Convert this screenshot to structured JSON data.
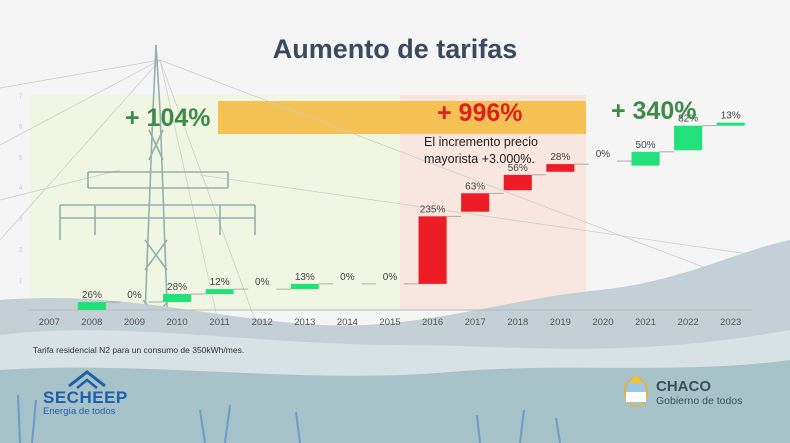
{
  "title": "Aumento de tarifas",
  "periods": {
    "p1": "+ 104%",
    "p2": "+ 996%",
    "p3": "+ 340%"
  },
  "note": "El incremento precio mayorista +3.000%.",
  "footnote": "Tarifa residencial N2 para un consumo de 350kWh/mes.",
  "logos": {
    "left_brand": "SECHEEP",
    "left_tagline": "Energía de todos",
    "right_brand": "CHACO",
    "right_tagline": "Gobierno de todos"
  },
  "colors": {
    "increase_green": "#22e07a",
    "increase_red": "#ee1c25",
    "title": "#3b4a5e",
    "highlight_band": "#f5b93c"
  },
  "chart_data": {
    "type": "waterfall",
    "categories": [
      "2007",
      "2008",
      "2009",
      "2010",
      "2011",
      "2012",
      "2013",
      "2014",
      "2015",
      "2016",
      "2017",
      "2018",
      "2019",
      "2020",
      "2021",
      "2022",
      "2023"
    ],
    "increase_labels": [
      "",
      "26%",
      "0%",
      "28%",
      "12%",
      "0%",
      "13%",
      "0%",
      "0%",
      "235%",
      "63%",
      "56%",
      "28%",
      "0%",
      "50%",
      "82%",
      "13%"
    ],
    "bars": [
      {
        "year": "2008",
        "start": 0.0,
        "end": 0.26,
        "color": "green"
      },
      {
        "year": "2009",
        "start": 0.26,
        "end": 0.26,
        "color": "none"
      },
      {
        "year": "2010",
        "start": 0.26,
        "end": 0.52,
        "color": "green"
      },
      {
        "year": "2011",
        "start": 0.52,
        "end": 0.68,
        "color": "green"
      },
      {
        "year": "2012",
        "start": 0.68,
        "end": 0.68,
        "color": "none"
      },
      {
        "year": "2013",
        "start": 0.68,
        "end": 0.85,
        "color": "green"
      },
      {
        "year": "2014",
        "start": 0.85,
        "end": 0.85,
        "color": "none"
      },
      {
        "year": "2015",
        "start": 0.85,
        "end": 0.85,
        "color": "none"
      },
      {
        "year": "2016",
        "start": 0.85,
        "end": 3.05,
        "color": "red"
      },
      {
        "year": "2017",
        "start": 3.2,
        "end": 3.8,
        "color": "red"
      },
      {
        "year": "2018",
        "start": 3.9,
        "end": 4.4,
        "color": "red"
      },
      {
        "year": "2019",
        "start": 4.5,
        "end": 4.75,
        "color": "red"
      },
      {
        "year": "2020",
        "start": 4.85,
        "end": 4.85,
        "color": "none"
      },
      {
        "year": "2021",
        "start": 4.7,
        "end": 5.15,
        "color": "green"
      },
      {
        "year": "2022",
        "start": 5.2,
        "end": 6.0,
        "color": "green"
      },
      {
        "year": "2023",
        "start": 6.0,
        "end": 6.1,
        "color": "green"
      }
    ],
    "y_tick_labels": [
      "0",
      "1",
      "2",
      "3",
      "4",
      "5",
      "6",
      "7"
    ],
    "ylim": [
      0,
      7
    ],
    "legend": "none",
    "grid": false
  }
}
